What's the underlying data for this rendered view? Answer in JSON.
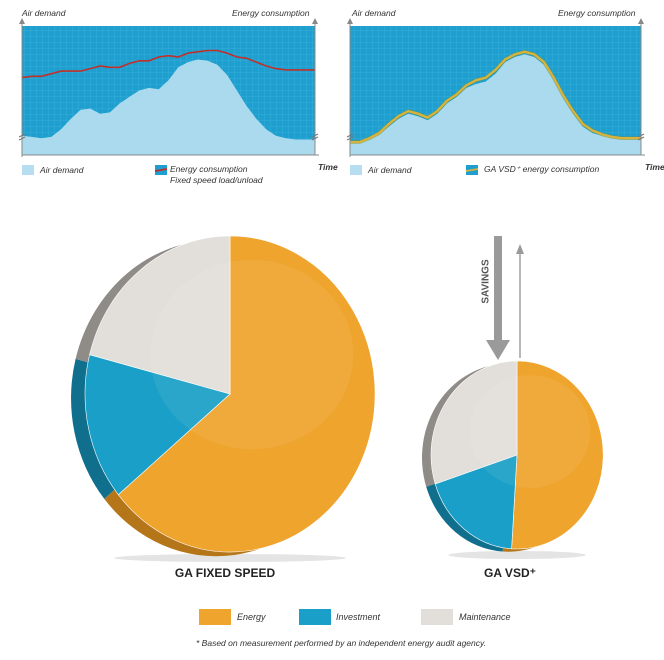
{
  "colors": {
    "grid_bg": "#1e9fcf",
    "air_fill": "#b6def0",
    "fixed_line": "#c0302a",
    "vsd_line": "#d9b23a",
    "energy": "#eea42d",
    "investment": "#1aa0c8",
    "maintenance": "#e2dfda"
  },
  "chart_data": [
    {
      "type": "area",
      "panel": "fixed",
      "top_left_label": "Air demand",
      "top_right_label": "Energy consumption",
      "x_label": "Time",
      "legend_air": "Air demand",
      "legend_energy_line1": "Energy consumption",
      "legend_energy_line2": "Fixed speed load/unload",
      "x": [
        0,
        1,
        2,
        3,
        4,
        5,
        6,
        7,
        8,
        9,
        10,
        11,
        12,
        13,
        14,
        15,
        16,
        17,
        18,
        19,
        20,
        21,
        22,
        23,
        24,
        25,
        26,
        27,
        28,
        29,
        30
      ],
      "air_demand": [
        15,
        14,
        13,
        14,
        20,
        28,
        35,
        36,
        32,
        33,
        40,
        45,
        50,
        52,
        51,
        58,
        68,
        72,
        74,
        73,
        70,
        62,
        50,
        38,
        28,
        20,
        15,
        13,
        12,
        12,
        12
      ],
      "energy_consumption": [
        60,
        61,
        61,
        63,
        65,
        65,
        65,
        67,
        69,
        68,
        68,
        71,
        73,
        73,
        76,
        77,
        76,
        79,
        80,
        81,
        81,
        79,
        76,
        75,
        72,
        69,
        67,
        66,
        66,
        66,
        66
      ]
    },
    {
      "type": "area",
      "panel": "vsd",
      "top_left_label": "Air demand",
      "top_right_label": "Energy consumption",
      "x_label": "Time",
      "legend_air": "Air demand",
      "legend_energy_line1": "GA VSD⁺ energy consumption",
      "x": [
        0,
        1,
        2,
        3,
        4,
        5,
        6,
        7,
        8,
        9,
        10,
        11,
        12,
        13,
        14,
        15,
        16,
        17,
        18,
        19,
        20,
        21,
        22,
        23,
        24,
        25,
        26,
        27,
        28,
        29,
        30
      ],
      "air_demand": [
        10,
        10,
        12,
        16,
        22,
        28,
        32,
        30,
        27,
        32,
        40,
        45,
        52,
        55,
        57,
        63,
        72,
        76,
        78,
        76,
        70,
        58,
        44,
        32,
        22,
        17,
        15,
        13,
        12,
        12,
        12
      ],
      "energy_consumption": [
        10,
        10,
        13,
        17,
        24,
        30,
        34,
        32,
        29,
        34,
        42,
        47,
        54,
        58,
        60,
        66,
        74,
        78,
        80,
        78,
        72,
        60,
        46,
        34,
        24,
        19,
        16,
        14,
        13,
        13,
        13
      ]
    },
    {
      "type": "pie",
      "panel": "fixed",
      "caption": "GA FIXED SPEED",
      "labels": [
        "Energy",
        "Investment",
        "Maintenance"
      ],
      "values": [
        64,
        15,
        21
      ]
    },
    {
      "type": "pie",
      "panel": "vsd",
      "caption": "GA VSD⁺",
      "labels": [
        "Energy",
        "Investment",
        "Maintenance"
      ],
      "values": [
        51,
        19,
        30
      ]
    }
  ],
  "savings_label": "SAVINGS",
  "legend": [
    {
      "label": "Energy",
      "color": "#eea42d"
    },
    {
      "label": "Investment",
      "color": "#1aa0c8"
    },
    {
      "label": "Maintenance",
      "color": "#e2dfda"
    }
  ],
  "footnote": "* Based on measurement performed by an independent energy audit agency."
}
